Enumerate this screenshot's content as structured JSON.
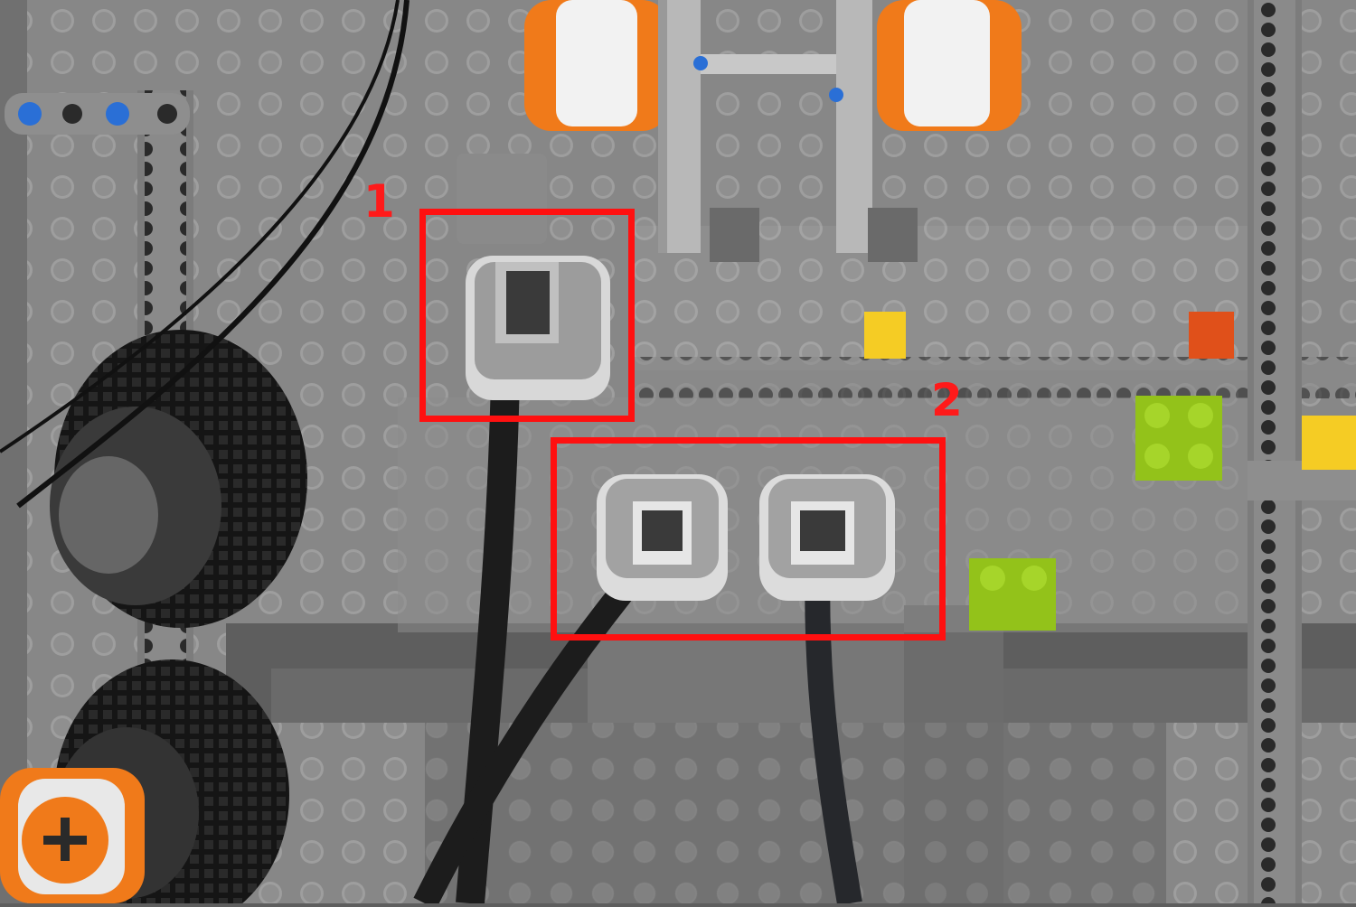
{
  "annotations": {
    "label_1": "1",
    "label_2": "2",
    "highlight_color": "#ff1010"
  },
  "colors": {
    "baseplate": "#9c9c9c",
    "dark_gray": "#5a5a5a",
    "light_gray": "#a8a8a8",
    "orange": "#f07a1a",
    "white": "#f2f2f2",
    "lime": "#93c21a",
    "yellow": "#f5cc24",
    "red_orange": "#e0501a",
    "blue": "#2a6fd6",
    "cable": "#1c1c1c"
  },
  "objects": {
    "sensor_count": 3,
    "motor_count": 3,
    "wheel_count": 2
  }
}
